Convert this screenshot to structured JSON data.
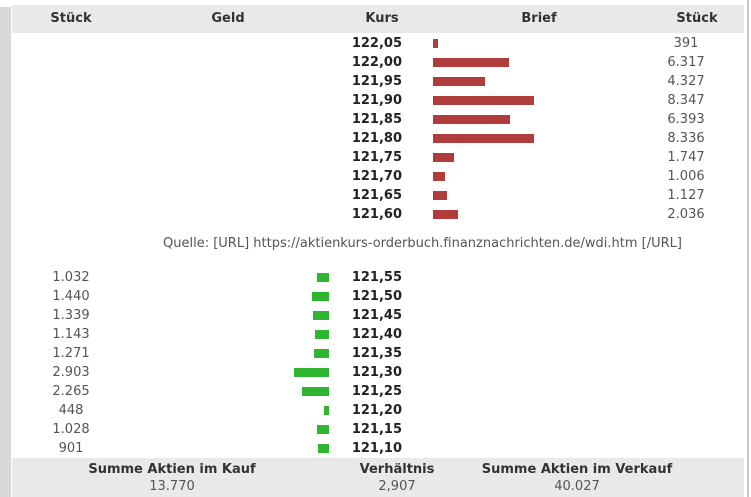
{
  "header": {
    "col_stueck_left": "Stück",
    "col_geld": "Geld",
    "col_kurs": "Kurs",
    "col_brief": "Brief",
    "col_stueck_right": "Stück"
  },
  "source_line": "Quelle: [URL] https://aktienkurs-orderbuch.finanznachrichten.de/wdi.htm [/URL]",
  "chart_data": {
    "type": "bar",
    "orientation": "horizontal",
    "title": "",
    "xlim": [
      0,
      8347
    ],
    "legend_position": "none",
    "grid": false,
    "series": [
      {
        "name": "Brief (Verkauf)",
        "color": "#b03c3c",
        "categories": [
          "122,05",
          "122,00",
          "121,95",
          "121,90",
          "121,85",
          "121,80",
          "121,75",
          "121,70",
          "121,65",
          "121,60"
        ],
        "values": [
          391,
          6317,
          4327,
          8347,
          6393,
          8336,
          1747,
          1006,
          1127,
          2036
        ],
        "value_labels": [
          "391",
          "6.317",
          "4.327",
          "8.347",
          "6.393",
          "8.336",
          "1.747",
          "1.006",
          "1.127",
          "2.036"
        ]
      },
      {
        "name": "Geld (Kauf)",
        "color": "#2fb52f",
        "categories": [
          "121,55",
          "121,50",
          "121,45",
          "121,40",
          "121,35",
          "121,30",
          "121,25",
          "121,20",
          "121,15",
          "121,10"
        ],
        "values": [
          1032,
          1440,
          1339,
          1143,
          1271,
          2903,
          2265,
          448,
          1028,
          901
        ],
        "value_labels": [
          "1.032",
          "1.440",
          "1.339",
          "1.143",
          "1.271",
          "2.903",
          "2.265",
          "448",
          "1.028",
          "901"
        ]
      }
    ]
  },
  "footer": {
    "buy_label": "Summe Aktien im Kauf",
    "buy_total": "13.770",
    "ratio_label": "Verhältnis",
    "ratio_value": "2,907",
    "sell_label": "Summe Aktien im Verkauf",
    "sell_total": "40.027"
  },
  "colors": {
    "ask_bar": "#b03c3c",
    "bid_bar": "#2fb52f",
    "band_bg": "#e9e9e9"
  }
}
